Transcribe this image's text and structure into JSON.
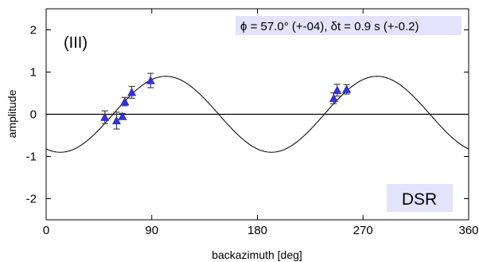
{
  "chart_data": {
    "type": "scatter",
    "xlabel": "backazimuth [deg]",
    "ylabel": "amplitude",
    "xlim": [
      0,
      360
    ],
    "ylim": [
      -2.5,
      2.5
    ],
    "x_ticks": [
      0,
      90,
      180,
      270,
      360
    ],
    "y_ticks": [
      -2,
      -1,
      0,
      1,
      2
    ],
    "x_tick_labels": [
      "0",
      "90",
      "180",
      "270",
      "360"
    ],
    "y_tick_labels": [
      "-2",
      "-1",
      "0",
      "1",
      "2"
    ],
    "panel_label": "(III)",
    "info_box": "ϕ = 57.0° (+-04), δt = 0.9 s (+-0.2)",
    "station_label": "DSR",
    "grid": false,
    "zero_line": 0,
    "fit_curve": {
      "amplitude": 0.9,
      "period_deg": 180,
      "phase_deg": 57,
      "x_range": [
        0,
        360
      ]
    },
    "series": [
      {
        "marker": "triangle",
        "color": "#3333dd",
        "points": [
          {
            "x": 50,
            "y": -0.07,
            "err": 0.15
          },
          {
            "x": 60,
            "y": -0.15,
            "err": 0.2
          },
          {
            "x": 65,
            "y": -0.05,
            "err": 0.07
          },
          {
            "x": 67,
            "y": 0.3,
            "err": 0.1
          },
          {
            "x": 73,
            "y": 0.52,
            "err": 0.14
          },
          {
            "x": 89,
            "y": 0.8,
            "err": 0.17
          },
          {
            "x": 245,
            "y": 0.38,
            "err": 0.13
          },
          {
            "x": 248,
            "y": 0.57,
            "err": 0.14
          },
          {
            "x": 256,
            "y": 0.59,
            "err": 0.11
          }
        ]
      }
    ]
  }
}
